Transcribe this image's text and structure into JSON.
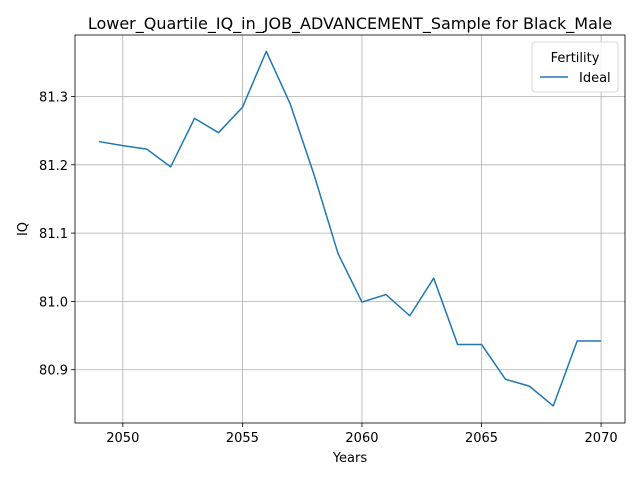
{
  "chart_data": {
    "type": "line",
    "title": "Lower_Quartile_IQ_in_JOB_ADVANCEMENT_Sample for Black_Male",
    "xlabel": "Years",
    "ylabel": "IQ",
    "xlim": [
      2048,
      2071
    ],
    "ylim": [
      80.822,
      81.39
    ],
    "xticks": [
      2050,
      2055,
      2060,
      2065,
      2070
    ],
    "yticks": [
      80.9,
      81.0,
      81.1,
      81.2,
      81.3
    ],
    "ytick_labels": [
      "80.9",
      "81.0",
      "81.1",
      "81.2",
      "81.3"
    ],
    "grid": true,
    "legend": {
      "title": "Fertility",
      "position": "top-right"
    },
    "series": [
      {
        "name": "Ideal",
        "color": "#1f77b4",
        "x": [
          2049,
          2050,
          2051,
          2052,
          2053,
          2054,
          2055,
          2056,
          2057,
          2058,
          2059,
          2060,
          2061,
          2062,
          2063,
          2064,
          2065,
          2066,
          2067,
          2068,
          2069,
          2070
        ],
        "y": [
          81.234,
          81.228,
          81.223,
          81.197,
          81.268,
          81.247,
          81.284,
          81.366,
          81.289,
          81.185,
          81.07,
          80.999,
          81.01,
          80.979,
          81.034,
          80.937,
          80.937,
          80.886,
          80.876,
          80.847,
          80.942,
          80.942
        ]
      }
    ]
  }
}
